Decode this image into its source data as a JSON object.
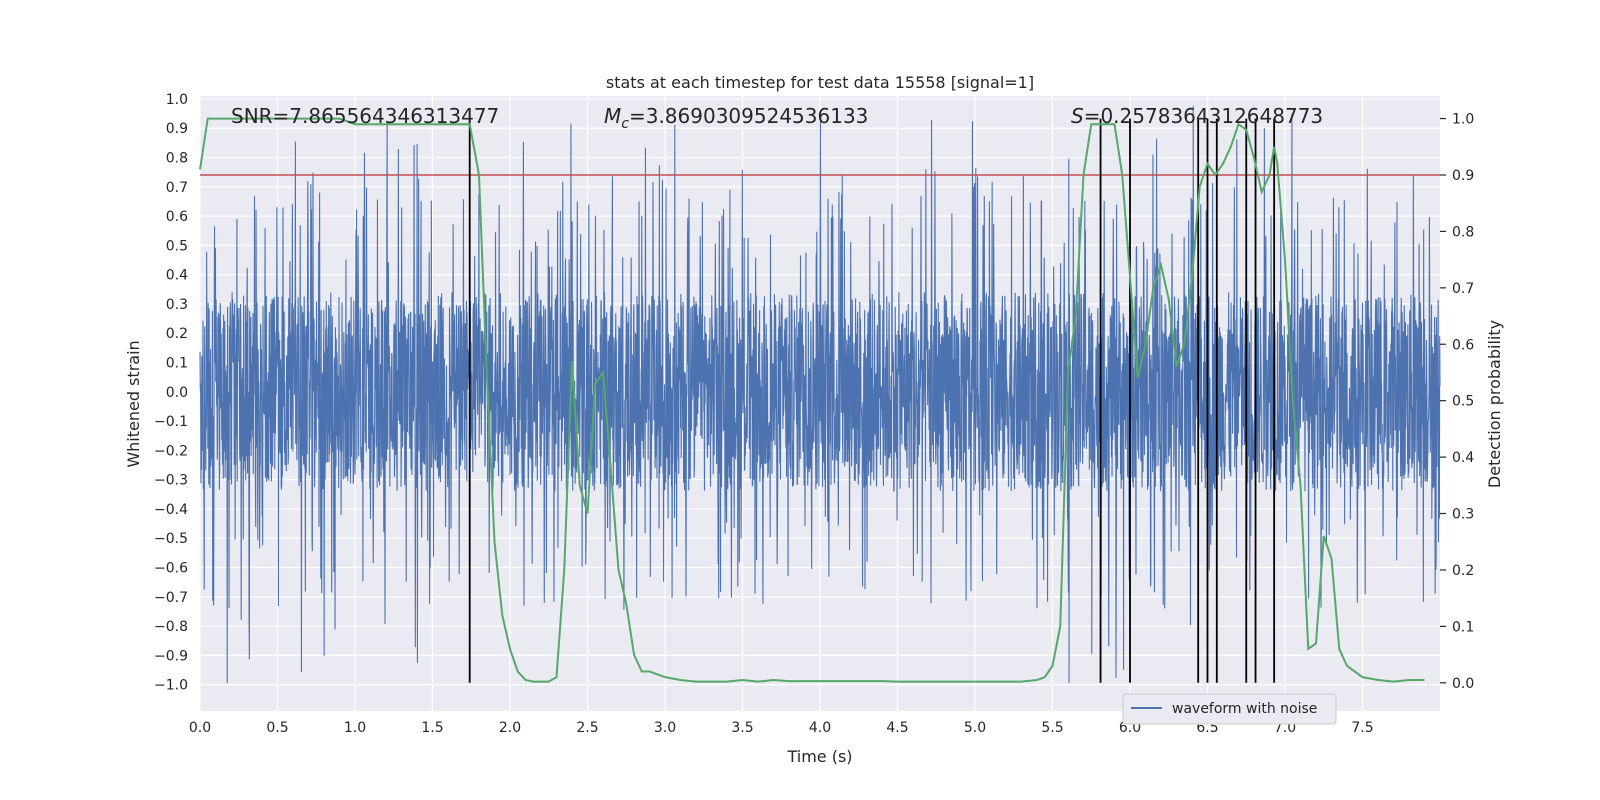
{
  "chart_data": {
    "type": "line",
    "title": "stats at each timestep for test data 15558 [signal=1]",
    "xlabel": "Time (s)",
    "ylabel_left": "Whitened strain",
    "ylabel_right": "Detection probability",
    "xlim": [
      0.0,
      8.0
    ],
    "ylim_left": [
      -1.09,
      1.01
    ],
    "ylim_right": [
      -0.05,
      1.04
    ],
    "xticks": [
      "0.0",
      "0.5",
      "1.0",
      "1.5",
      "2.0",
      "2.5",
      "3.0",
      "3.5",
      "4.0",
      "4.5",
      "5.0",
      "5.5",
      "6.0",
      "6.5",
      "7.0",
      "7.5"
    ],
    "yticks_left": [
      "1.0",
      "0.9",
      "0.8",
      "0.7",
      "0.6",
      "0.5",
      "0.4",
      "0.3",
      "0.2",
      "0.1",
      "0.0",
      "−0.1",
      "−0.2",
      "−0.3",
      "−0.4",
      "−0.5",
      "−0.6",
      "−0.7",
      "−0.8",
      "−0.9",
      "−1.0"
    ],
    "yticks_right": [
      "0.0",
      "0.1",
      "0.2",
      "0.3",
      "0.4",
      "0.5",
      "0.6",
      "0.7",
      "0.8",
      "0.9",
      "1.0"
    ],
    "annotations": {
      "snr": "SNR=7.865564346313477",
      "mc_symbol": "M",
      "mc_sub": "c",
      "mc_value": "=3.8690309524536133",
      "s_symbol": "S",
      "s_value": "=0.2578364312648773"
    },
    "threshold": {
      "value": 0.9,
      "axis": "right",
      "color": "#c44e52"
    },
    "event_lines_x": [
      1.74,
      5.81,
      6.0,
      6.44,
      6.5,
      6.56,
      6.75,
      6.81,
      6.93
    ],
    "waveform": {
      "name": "waveform with noise",
      "color": "#4c72b0",
      "samples": 4096,
      "core_amplitude": 0.34,
      "spike_max": 1.0
    },
    "detection_probability": {
      "name": "detection probability",
      "color": "#55a868",
      "x": [
        0.0,
        0.05,
        0.1,
        0.3,
        0.6,
        0.9,
        1.0,
        1.1,
        1.2,
        1.3,
        1.4,
        1.5,
        1.6,
        1.7,
        1.74,
        1.8,
        1.85,
        1.9,
        1.95,
        2.0,
        2.05,
        2.1,
        2.15,
        2.2,
        2.25,
        2.3,
        2.35,
        2.4,
        2.45,
        2.5,
        2.55,
        2.6,
        2.65,
        2.7,
        2.75,
        2.8,
        2.85,
        2.9,
        2.95,
        3.0,
        3.1,
        3.2,
        3.3,
        3.4,
        3.5,
        3.6,
        3.7,
        3.8,
        3.9,
        4.0,
        4.1,
        4.2,
        4.3,
        4.4,
        4.5,
        4.6,
        4.7,
        4.8,
        4.9,
        5.0,
        5.1,
        5.2,
        5.3,
        5.4,
        5.45,
        5.5,
        5.55,
        5.6,
        5.65,
        5.7,
        5.75,
        5.8,
        5.85,
        5.9,
        5.95,
        6.0,
        6.05,
        6.1,
        6.15,
        6.2,
        6.25,
        6.3,
        6.35,
        6.4,
        6.45,
        6.5,
        6.55,
        6.6,
        6.65,
        6.7,
        6.75,
        6.8,
        6.85,
        6.9,
        6.93,
        6.95,
        7.0,
        7.05,
        7.1,
        7.15,
        7.2,
        7.25,
        7.3,
        7.35,
        7.4,
        7.5,
        7.6,
        7.7,
        7.8,
        7.9
      ],
      "y": [
        0.91,
        1.0,
        1.0,
        1.0,
        1.0,
        1.0,
        0.99,
        0.99,
        0.99,
        0.99,
        0.99,
        0.99,
        0.99,
        0.99,
        0.99,
        0.9,
        0.55,
        0.25,
        0.12,
        0.06,
        0.02,
        0.005,
        0.002,
        0.002,
        0.002,
        0.01,
        0.2,
        0.57,
        0.35,
        0.3,
        0.53,
        0.55,
        0.38,
        0.2,
        0.14,
        0.05,
        0.02,
        0.02,
        0.015,
        0.01,
        0.005,
        0.002,
        0.002,
        0.002,
        0.005,
        0.002,
        0.005,
        0.003,
        0.003,
        0.003,
        0.003,
        0.003,
        0.003,
        0.003,
        0.002,
        0.002,
        0.002,
        0.002,
        0.002,
        0.002,
        0.002,
        0.002,
        0.002,
        0.005,
        0.01,
        0.03,
        0.1,
        0.55,
        0.65,
        0.9,
        0.99,
        0.99,
        0.99,
        0.99,
        0.9,
        0.72,
        0.54,
        0.6,
        0.7,
        0.74,
        0.68,
        0.56,
        0.6,
        0.72,
        0.88,
        0.92,
        0.9,
        0.92,
        0.95,
        0.99,
        0.98,
        0.93,
        0.87,
        0.9,
        0.95,
        0.92,
        0.75,
        0.5,
        0.35,
        0.06,
        0.07,
        0.26,
        0.22,
        0.06,
        0.03,
        0.01,
        0.005,
        0.002,
        0.005,
        0.005
      ],
      "y_axis": "right"
    },
    "legend": {
      "label": "waveform with noise",
      "position": "bottom-right"
    },
    "grid": true
  }
}
